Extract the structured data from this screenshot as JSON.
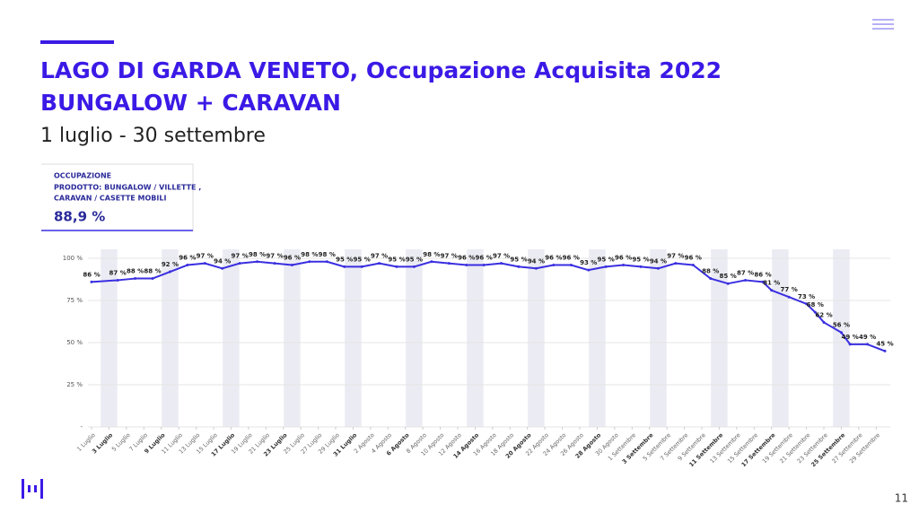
{
  "header": {
    "title_lines": [
      "LAGO DI GARDA VENETO, Occupazione Acquisita 2022",
      "BUNGALOW + CARAVAN"
    ],
    "subtitle": "1 luglio - 30 settembre"
  },
  "kpi": {
    "label": "OCCUPAZIONE",
    "product_lines": [
      "PRODOTTO: BUNGALOW / VILLETTE ,",
      "CARAVAN / CASETTE MOBILI"
    ],
    "value": "88,9 %"
  },
  "page_number": "11",
  "chart_data": {
    "type": "line",
    "color": "#3a2fe0",
    "x": [
      0,
      3,
      5,
      7,
      9,
      11,
      13,
      15,
      17,
      19,
      21,
      23,
      25,
      27,
      29,
      31,
      33,
      35,
      37,
      39,
      41,
      43,
      45,
      47,
      49,
      51,
      53,
      55,
      57,
      59,
      61,
      63,
      65,
      67,
      69,
      71,
      73,
      75,
      77,
      78,
      80,
      82,
      83,
      84,
      86,
      87,
      89,
      91
    ],
    "values": [
      86,
      87,
      88,
      88,
      92,
      96,
      97,
      94,
      97,
      98,
      97,
      96,
      98,
      98,
      95,
      95,
      97,
      95,
      95,
      98,
      97,
      96,
      96,
      97,
      95,
      94,
      96,
      96,
      93,
      95,
      96,
      95,
      94,
      97,
      96,
      88,
      85,
      87,
      86,
      81,
      77,
      73,
      68,
      62,
      56,
      49,
      49,
      45
    ],
    "value_labels": [
      "86 %",
      "87 %",
      "88 %",
      "88 %",
      "92 %",
      "96 %",
      "97 %",
      "94 %",
      "97 %",
      "98 %",
      "97 %",
      "96 %",
      "98 %",
      "98 %",
      "95 %",
      "95 %",
      "97 %",
      "95 %",
      "95 %",
      "98 %",
      "97 %",
      "96 %",
      "96 %",
      "97 %",
      "95 %",
      "94 %",
      "96 %",
      "96 %",
      "93 %",
      "95 %",
      "96 %",
      "95 %",
      "94 %",
      "97 %",
      "96 %",
      "88 %",
      "85 %",
      "87 %",
      "86 %",
      "81 %",
      "77 %",
      "73 %",
      "68 %",
      "62 %",
      "56 %",
      "49 %",
      "49 %",
      "45 %"
    ],
    "xlim": [
      0,
      91
    ],
    "xticks": [
      {
        "value": 0,
        "label": "1 Luglio"
      },
      {
        "value": 2,
        "label": "3 Luglio",
        "bold": true
      },
      {
        "value": 4,
        "label": "5 Luglio"
      },
      {
        "value": 6,
        "label": "7 Luglio"
      },
      {
        "value": 8,
        "label": "9 Luglio",
        "bold": true
      },
      {
        "value": 10,
        "label": "11 Luglio"
      },
      {
        "value": 12,
        "label": "13 Luglio"
      },
      {
        "value": 14,
        "label": "15 Luglio"
      },
      {
        "value": 16,
        "label": "17 Luglio",
        "bold": true
      },
      {
        "value": 18,
        "label": "19 Luglio"
      },
      {
        "value": 20,
        "label": "21 Luglio"
      },
      {
        "value": 22,
        "label": "23 Luglio",
        "bold": true
      },
      {
        "value": 24,
        "label": "25 Luglio"
      },
      {
        "value": 26,
        "label": "27 Luglio"
      },
      {
        "value": 28,
        "label": "29 Luglio"
      },
      {
        "value": 30,
        "label": "31 Luglio",
        "bold": true
      },
      {
        "value": 32,
        "label": "2 Agosto"
      },
      {
        "value": 34,
        "label": "4 Agosto"
      },
      {
        "value": 36,
        "label": "6 Agosto",
        "bold": true
      },
      {
        "value": 38,
        "label": "8 Agosto"
      },
      {
        "value": 40,
        "label": "10 Agosto"
      },
      {
        "value": 42,
        "label": "12 Agosto"
      },
      {
        "value": 44,
        "label": "14 Agosto",
        "bold": true
      },
      {
        "value": 46,
        "label": "16 Agosto"
      },
      {
        "value": 48,
        "label": "18 Agosto"
      },
      {
        "value": 50,
        "label": "20 Agosto",
        "bold": true
      },
      {
        "value": 52,
        "label": "22 Agosto"
      },
      {
        "value": 54,
        "label": "24 Agosto"
      },
      {
        "value": 56,
        "label": "26 Agosto"
      },
      {
        "value": 58,
        "label": "28 Agosto",
        "bold": true
      },
      {
        "value": 60,
        "label": "30 Agosto"
      },
      {
        "value": 62,
        "label": "1 Settembre"
      },
      {
        "value": 64,
        "label": "3 Settembre",
        "bold": true
      },
      {
        "value": 66,
        "label": "5 Settembre"
      },
      {
        "value": 68,
        "label": "7 Settembre"
      },
      {
        "value": 70,
        "label": "9 Settembre"
      },
      {
        "value": 72,
        "label": "11 Settembre",
        "bold": true
      },
      {
        "value": 74,
        "label": "13 Settembre"
      },
      {
        "value": 76,
        "label": "15 Settembre"
      },
      {
        "value": 78,
        "label": "17 Settembre",
        "bold": true
      },
      {
        "value": 80,
        "label": "19 Settembre"
      },
      {
        "value": 82,
        "label": "21 Settembre"
      },
      {
        "value": 84,
        "label": "23 Settembre"
      },
      {
        "value": 86,
        "label": "25 Settembre",
        "bold": true
      },
      {
        "value": 88,
        "label": "27 Settembre"
      },
      {
        "value": 90,
        "label": "29 Settembre"
      }
    ],
    "ylim": [
      0,
      100
    ],
    "yticks": [
      {
        "value": 0,
        "label": "-"
      },
      {
        "value": 25,
        "label": "25 %"
      },
      {
        "value": 50,
        "label": "50 %"
      },
      {
        "value": 75,
        "label": "75 %"
      },
      {
        "value": 100,
        "label": "100 %"
      }
    ],
    "grid": true
  }
}
